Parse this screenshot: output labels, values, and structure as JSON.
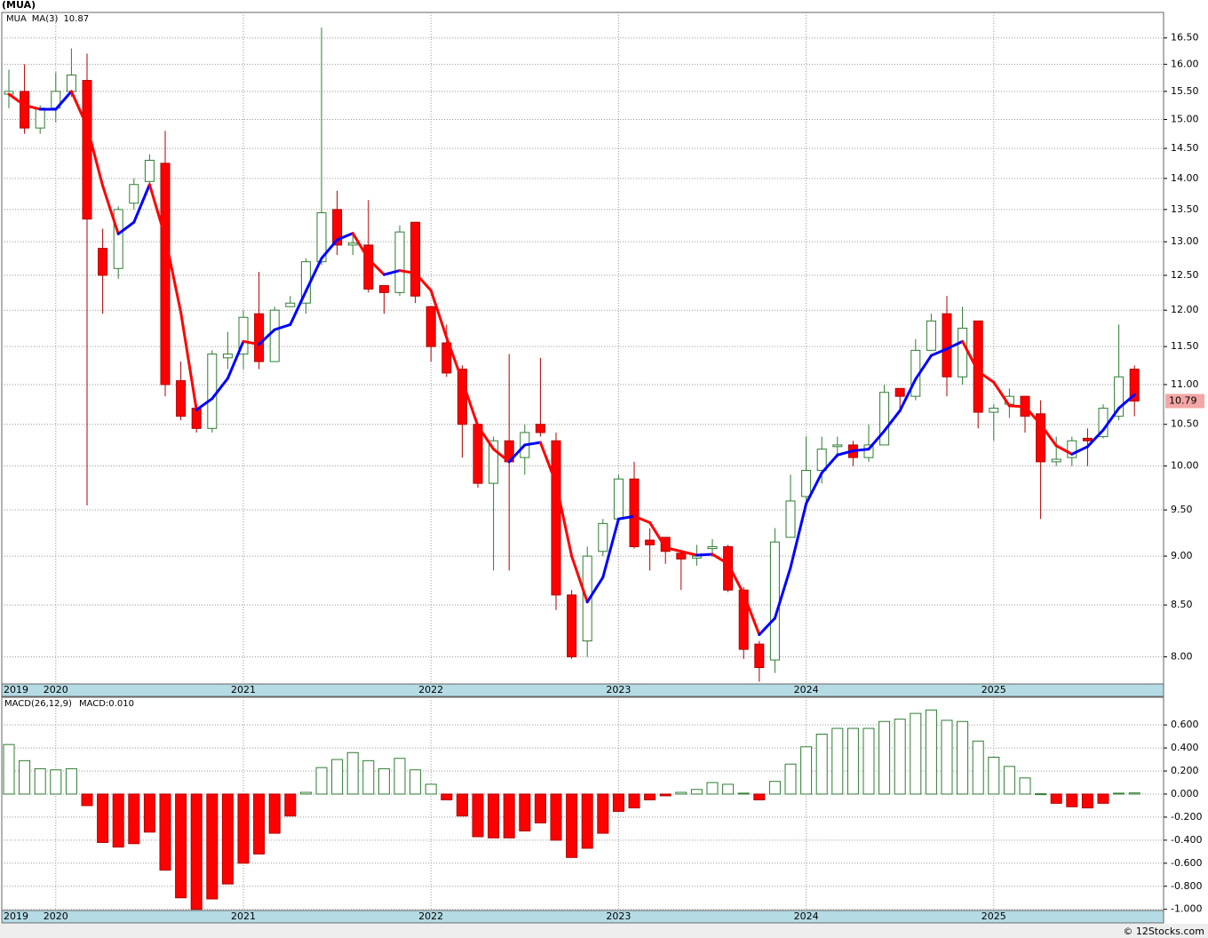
{
  "chart_data": [
    {
      "type": "candlestick",
      "title": "(MUA)",
      "log_scale": true,
      "grid": true,
      "categories": [
        "2019",
        null,
        null,
        "2020",
        null,
        null,
        null,
        null,
        null,
        null,
        null,
        null,
        null,
        null,
        null,
        "2021",
        null,
        null,
        null,
        null,
        null,
        null,
        null,
        null,
        null,
        null,
        null,
        "2022",
        null,
        null,
        null,
        null,
        null,
        null,
        null,
        null,
        null,
        null,
        null,
        "2023",
        null,
        null,
        null,
        null,
        null,
        null,
        null,
        null,
        null,
        null,
        null,
        "2024",
        null,
        null,
        null,
        null,
        null,
        null,
        null,
        null,
        null,
        null,
        null,
        "2025",
        null,
        null,
        null,
        null,
        null,
        null,
        null,
        null,
        null
      ],
      "ylim": [
        7.75,
        17.0
      ],
      "yticks": [
        {
          "value": 8,
          "label": "8.00"
        },
        {
          "value": 8.5,
          "label": "8.50"
        },
        {
          "value": 9,
          "label": "9.00"
        },
        {
          "value": 9.5,
          "label": "9.50"
        },
        {
          "value": 10,
          "label": "10.00"
        },
        {
          "value": 10.5,
          "label": "10.50"
        },
        {
          "value": 11,
          "label": "11.00"
        },
        {
          "value": 11.5,
          "label": "11.50"
        },
        {
          "value": 12,
          "label": "12.00"
        },
        {
          "value": 12.5,
          "label": "12.50"
        },
        {
          "value": 13,
          "label": "13.00"
        },
        {
          "value": 13.5,
          "label": "13.50"
        },
        {
          "value": 14,
          "label": "14.00"
        },
        {
          "value": 14.5,
          "label": "14.50"
        },
        {
          "value": 15,
          "label": "15.00"
        },
        {
          "value": 15.5,
          "label": "15.50"
        },
        {
          "value": 16,
          "label": "16.00"
        },
        {
          "value": 16.5,
          "label": "16.50"
        }
      ],
      "series": [
        {
          "name": "MUA",
          "up_color": "#2e7d32",
          "down_color": "#ff0000",
          "last_label": "10.79",
          "open": [
            15.45,
            15.5,
            14.85,
            15.2,
            15.5,
            15.7,
            12.9,
            12.6,
            13.6,
            13.95,
            14.25,
            11.05,
            10.7,
            10.45,
            11.35,
            11.4,
            11.95,
            11.3,
            12.05,
            12.1,
            12.7,
            13.5,
            12.95,
            12.95,
            12.35,
            12.25,
            13.3,
            12.05,
            11.55,
            11.2,
            10.5,
            9.8,
            10.3,
            10.1,
            10.5,
            10.3,
            8.6,
            8.15,
            9.05,
            9.4,
            9.85,
            9.17,
            9.2,
            9.03,
            8.98,
            9.08,
            9.1,
            8.65,
            8.12,
            7.97,
            9.2,
            9.65,
            9.95,
            10.23,
            10.25,
            10.1,
            10.25,
            10.95,
            10.85,
            11.45,
            11.95,
            11.1,
            11.85,
            10.65,
            10.75,
            10.85,
            10.63,
            10.05,
            10.1,
            10.33,
            10.35,
            10.6,
            11.2
          ],
          "high": [
            15.9,
            16.0,
            15.25,
            15.85,
            16.3,
            16.2,
            13.2,
            13.55,
            14.0,
            14.4,
            14.8,
            11.3,
            10.75,
            11.45,
            11.7,
            12.0,
            12.55,
            12.05,
            12.2,
            12.75,
            16.7,
            13.8,
            13.15,
            13.65,
            12.35,
            13.25,
            13.3,
            12.05,
            11.8,
            11.25,
            10.5,
            10.35,
            11.4,
            10.5,
            11.35,
            10.4,
            8.65,
            9.1,
            9.4,
            9.9,
            10.05,
            9.3,
            9.2,
            9.05,
            9.12,
            9.18,
            9.12,
            8.68,
            8.15,
            9.3,
            9.9,
            10.35,
            10.35,
            10.35,
            10.3,
            10.5,
            11.0,
            10.95,
            11.6,
            11.95,
            12.2,
            12.05,
            11.85,
            10.75,
            10.95,
            10.85,
            10.8,
            10.35,
            10.35,
            10.45,
            10.75,
            11.8,
            11.25
          ],
          "low": [
            15.2,
            14.75,
            14.75,
            14.95,
            15.4,
            9.55,
            11.95,
            12.45,
            13.5,
            13.85,
            10.85,
            10.55,
            10.4,
            10.4,
            11.2,
            11.2,
            11.2,
            11.3,
            12.05,
            11.95,
            12.65,
            12.8,
            12.8,
            12.25,
            11.95,
            12.2,
            12.1,
            11.3,
            11.1,
            10.1,
            9.75,
            8.85,
            8.85,
            9.9,
            10.35,
            8.45,
            7.98,
            8.0,
            9.0,
            9.4,
            9.08,
            8.85,
            8.92,
            8.65,
            8.9,
            8.99,
            8.63,
            7.98,
            7.77,
            7.85,
            9.2,
            9.6,
            9.8,
            10.1,
            10.0,
            10.05,
            10.25,
            10.7,
            10.8,
            11.45,
            10.85,
            11.0,
            10.45,
            10.3,
            10.58,
            10.4,
            9.4,
            10.0,
            10.0,
            10.0,
            10.33,
            10.55,
            10.6
          ],
          "close": [
            15.5,
            14.85,
            15.2,
            15.5,
            15.8,
            13.35,
            12.5,
            13.5,
            13.9,
            14.3,
            11.0,
            10.6,
            10.45,
            11.4,
            11.4,
            11.9,
            11.3,
            12.0,
            12.1,
            12.7,
            13.45,
            12.95,
            12.98,
            12.3,
            12.25,
            13.15,
            12.2,
            11.5,
            11.15,
            10.5,
            9.8,
            10.3,
            10.05,
            10.4,
            10.4,
            8.6,
            8.0,
            9.0,
            9.35,
            9.85,
            9.1,
            9.12,
            9.05,
            8.97,
            9.0,
            9.1,
            8.65,
            8.07,
            7.9,
            9.15,
            9.6,
            9.95,
            10.2,
            10.25,
            10.1,
            10.25,
            10.9,
            10.85,
            11.45,
            11.85,
            11.1,
            11.75,
            10.65,
            10.7,
            10.85,
            10.6,
            10.05,
            10.08,
            10.3,
            10.3,
            10.7,
            11.1,
            10.79
          ]
        },
        {
          "name": "MA(3)",
          "rising_color": "#0000ff",
          "falling_color": "#ff0000",
          "last_label": "10.87",
          "values": [
            15.45,
            15.25,
            15.18,
            15.18,
            15.5,
            14.88,
            13.88,
            13.12,
            13.3,
            13.9,
            13.07,
            11.97,
            10.68,
            10.82,
            11.08,
            11.57,
            11.53,
            11.73,
            11.8,
            12.27,
            12.75,
            13.03,
            13.13,
            12.74,
            12.51,
            12.57,
            12.53,
            12.28,
            11.62,
            11.05,
            10.48,
            10.2,
            10.05,
            10.25,
            10.28,
            9.8,
            9.0,
            8.53,
            8.78,
            9.4,
            9.43,
            9.36,
            9.09,
            9.05,
            9.01,
            9.02,
            8.92,
            8.61,
            8.21,
            8.37,
            8.88,
            9.57,
            9.92,
            10.13,
            10.18,
            10.2,
            10.42,
            10.67,
            11.07,
            11.38,
            11.47,
            11.57,
            11.17,
            11.03,
            10.73,
            10.72,
            10.5,
            10.24,
            10.14,
            10.23,
            10.43,
            10.7,
            10.87
          ]
        }
      ]
    },
    {
      "type": "bar",
      "title": "MACD(26,12,9)",
      "log_scale": false,
      "grid": true,
      "categories": [
        "2019",
        null,
        null,
        "2020",
        null,
        null,
        null,
        null,
        null,
        null,
        null,
        null,
        null,
        null,
        null,
        "2021",
        null,
        null,
        null,
        null,
        null,
        null,
        null,
        null,
        null,
        null,
        null,
        "2022",
        null,
        null,
        null,
        null,
        null,
        null,
        null,
        null,
        null,
        null,
        null,
        "2023",
        null,
        null,
        null,
        null,
        null,
        null,
        null,
        null,
        null,
        null,
        null,
        "2024",
        null,
        null,
        null,
        null,
        null,
        null,
        null,
        null,
        null,
        null,
        null,
        "2025",
        null,
        null,
        null,
        null,
        null,
        null,
        null,
        null,
        null
      ],
      "ylim": [
        -1.01,
        0.84
      ],
      "yticks": [
        {
          "value": -1,
          "label": "-1.000"
        },
        {
          "value": -0.8,
          "label": "-0.800"
        },
        {
          "value": -0.6,
          "label": "-0.600"
        },
        {
          "value": -0.4,
          "label": "-0.400"
        },
        {
          "value": -0.2,
          "label": "-0.200"
        },
        {
          "value": 0,
          "label": "0.000"
        },
        {
          "value": 0.2,
          "label": "0.200"
        },
        {
          "value": 0.4,
          "label": "0.400"
        },
        {
          "value": 0.6,
          "label": "0.600"
        }
      ],
      "series": [
        {
          "up_color": "#2e7d32",
          "down_color": "#ff0000",
          "label_color": "#0000ff",
          "last_label": "MACD:0.010",
          "values": [
            0.43,
            0.29,
            0.22,
            0.21,
            0.22,
            -0.1,
            -0.42,
            -0.46,
            -0.43,
            -0.33,
            -0.66,
            -0.9,
            -1.0,
            -0.91,
            -0.78,
            -0.6,
            -0.52,
            -0.34,
            -0.19,
            0.015,
            0.23,
            0.3,
            0.36,
            0.29,
            0.22,
            0.31,
            0.21,
            0.085,
            -0.05,
            -0.19,
            -0.37,
            -0.38,
            -0.38,
            -0.32,
            -0.25,
            -0.4,
            -0.55,
            -0.47,
            -0.34,
            -0.15,
            -0.12,
            -0.05,
            -0.015,
            0.015,
            0.04,
            0.1,
            0.085,
            0.008,
            -0.05,
            0.11,
            0.26,
            0.41,
            0.52,
            0.57,
            0.57,
            0.57,
            0.63,
            0.65,
            0.7,
            0.73,
            0.64,
            0.63,
            0.46,
            0.32,
            0.24,
            0.14,
            0.003,
            -0.08,
            -0.11,
            -0.12,
            -0.08,
            0.008,
            0.01
          ]
        }
      ]
    }
  ],
  "footer": "© 12Stocks.com"
}
